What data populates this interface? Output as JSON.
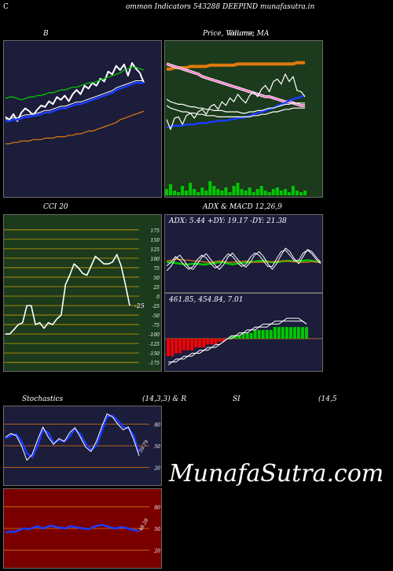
{
  "header": {
    "left_letter": "C",
    "title": "ommon  Indicators 543288  DEEPIND munafasutra.in"
  },
  "watermark": "MunafaSutra.com",
  "colors": {
    "navy": "#1c1c3b",
    "forest": "#1c3a1c",
    "maroon": "#7a0000",
    "white": "#ffffff",
    "blue": "#1a3cff",
    "green": "#00c800",
    "orange": "#e07a10",
    "pink": "#ff7ad0",
    "red": "#ff0000",
    "gold": "#c8a000"
  },
  "panels": {
    "bb": {
      "title": "B"
    },
    "price": {
      "title_a": "Price,  Volume,  MA",
      "title_b": "Volume"
    },
    "cci": {
      "title": "CCI 20",
      "last_label": "-25"
    },
    "adx": {
      "title": "ADX  & MACD 12,26,9",
      "values_label": "ADX: 5.44  +DY: 19.17 -DY: 21.38"
    },
    "macd": {
      "values_label": "461.85,  454.84,  7.01"
    },
    "stoch": {
      "title_left": "Stochastics",
      "title_mid": "(14,3,3) & R",
      "title_right": "SI",
      "title_far": "(14,5",
      "last_label": "39.79"
    },
    "rsi": {
      "last_label": "48.28"
    }
  },
  "chart_data": [
    {
      "type": "line",
      "name_hint": "bollinger",
      "ylim": [
        0,
        100
      ],
      "series": [
        {
          "color": "white",
          "values": [
            52,
            50,
            54,
            49,
            55,
            58,
            56,
            53,
            57,
            60,
            59,
            63,
            61,
            66,
            64,
            67,
            63,
            68,
            71,
            68,
            74,
            72,
            76,
            74,
            79,
            77,
            84,
            82,
            88,
            85,
            89,
            81,
            90,
            86,
            83,
            76
          ]
        },
        {
          "color": "blue",
          "values": [
            49,
            49,
            50,
            50,
            51,
            52,
            52,
            53,
            53,
            54,
            55,
            55,
            56,
            57,
            58,
            58,
            59,
            60,
            61,
            61,
            62,
            63,
            64,
            65,
            66,
            67,
            68,
            69,
            71,
            72,
            73,
            74,
            75,
            76,
            76,
            76
          ]
        },
        {
          "color": "green",
          "values": [
            65,
            66,
            66,
            65,
            64,
            65,
            66,
            66,
            67,
            67,
            68,
            69,
            69,
            70,
            71,
            71,
            72,
            73,
            73,
            74,
            75,
            76,
            76,
            77,
            78,
            79,
            80,
            81,
            82,
            83,
            85,
            86,
            87,
            87,
            86,
            85
          ]
        },
        {
          "color": "orange",
          "values": [
            33,
            33,
            34,
            34,
            35,
            35,
            35,
            36,
            36,
            36,
            37,
            37,
            37,
            38,
            38,
            38,
            39,
            39,
            40,
            40,
            41,
            42,
            42,
            43,
            44,
            45,
            46,
            47,
            48,
            50,
            51,
            52,
            53,
            54,
            55,
            56
          ]
        }
      ]
    },
    {
      "type": "line",
      "name_hint": "price_ma_volume",
      "ylim": [
        0,
        100
      ],
      "series": [
        {
          "color": "orange",
          "values": [
            84,
            84,
            85,
            85,
            85,
            85,
            86,
            86,
            86,
            86,
            86,
            87,
            87,
            87,
            87,
            87,
            87,
            87,
            88,
            88,
            88,
            88,
            88,
            88,
            88,
            88,
            88,
            88,
            88,
            88,
            88,
            88,
            88,
            89,
            89,
            89
          ]
        },
        {
          "color": "pink",
          "values": [
            88,
            87,
            86,
            85,
            84,
            83,
            82,
            81,
            80,
            78,
            77,
            76,
            75,
            74,
            73,
            72,
            71,
            70,
            69,
            68,
            67,
            66,
            65,
            64,
            63,
            62,
            62,
            61,
            60,
            59,
            58,
            58,
            57,
            56,
            55,
            55
          ]
        },
        {
          "color": "blue",
          "values": [
            38,
            38,
            39,
            39,
            39,
            40,
            40,
            40,
            41,
            41,
            41,
            42,
            42,
            43,
            43,
            43,
            44,
            44,
            45,
            45,
            46,
            47,
            48,
            49,
            50,
            51,
            52,
            53,
            55,
            56,
            57,
            59,
            60,
            61,
            62,
            63
          ]
        },
        {
          "color": "white",
          "values": [
            44,
            36,
            45,
            46,
            40,
            47,
            49,
            45,
            50,
            52,
            48,
            54,
            56,
            52,
            58,
            55,
            61,
            58,
            64,
            60,
            57,
            63,
            66,
            62,
            68,
            71,
            66,
            74,
            76,
            72,
            80,
            74,
            78,
            67,
            66,
            62
          ]
        },
        {
          "color": "white",
          "values": [
            60,
            58,
            57,
            56,
            56,
            55,
            54,
            54,
            53,
            53,
            52,
            52,
            51,
            51,
            51,
            50,
            50,
            50,
            50,
            49,
            49,
            50,
            50,
            51,
            51,
            52,
            53,
            53,
            54,
            55,
            56,
            56,
            57,
            57,
            57,
            57
          ]
        },
        {
          "color": "white",
          "values": [
            55,
            53,
            52,
            51,
            50,
            50,
            49,
            49,
            48,
            48,
            47,
            47,
            47,
            46,
            46,
            46,
            46,
            46,
            46,
            46,
            46,
            46,
            47,
            47,
            48,
            48,
            49,
            50,
            50,
            51,
            52,
            52,
            53,
            53,
            53,
            53
          ]
        }
      ],
      "volume": [
        4,
        7,
        3,
        2,
        6,
        3,
        8,
        4,
        2,
        5,
        3,
        9,
        6,
        4,
        3,
        5,
        2,
        6,
        8,
        4,
        3,
        5,
        2,
        4,
        6,
        3,
        2,
        4,
        5,
        3,
        4,
        2,
        6,
        3,
        2,
        3
      ]
    },
    {
      "type": "line",
      "name_hint": "cci",
      "yticks": [
        175,
        150,
        125,
        100,
        75,
        50,
        25,
        0,
        -25,
        -50,
        -75,
        -100,
        -125,
        -150,
        -175
      ],
      "ylim": [
        -185,
        185
      ],
      "series": [
        {
          "color": "white",
          "values": [
            -100,
            -100,
            -88,
            -75,
            -70,
            -25,
            -25,
            -75,
            -70,
            -85,
            -70,
            -75,
            -60,
            -50,
            30,
            55,
            85,
            75,
            60,
            55,
            80,
            105,
            95,
            85,
            85,
            90,
            110,
            80,
            30,
            -25
          ]
        }
      ]
    },
    {
      "type": "line",
      "name_hint": "adx",
      "ylim": [
        0,
        100
      ],
      "series": [
        {
          "color": "green",
          "values": [
            40,
            40,
            39,
            38,
            37,
            37,
            38,
            38,
            37,
            37,
            38,
            39,
            40,
            40,
            38,
            37,
            38,
            39,
            40,
            40,
            41,
            42,
            42,
            41,
            40,
            40,
            41,
            42,
            42,
            41,
            42,
            42,
            43,
            42,
            41,
            40
          ]
        },
        {
          "color": "orange",
          "values": [
            42,
            43,
            44,
            44,
            43,
            43,
            42,
            42,
            41,
            40,
            40,
            41,
            42,
            41,
            40,
            40,
            41,
            41,
            42,
            41,
            40,
            40,
            40,
            41,
            41,
            41,
            42,
            42,
            41,
            41,
            40,
            40,
            40,
            41,
            40,
            40
          ]
        },
        {
          "color": "white",
          "values": [
            28,
            34,
            45,
            50,
            42,
            33,
            30,
            38,
            47,
            52,
            44,
            36,
            30,
            37,
            48,
            53,
            45,
            38,
            33,
            40,
            50,
            55,
            48,
            38,
            30,
            38,
            50,
            60,
            55,
            45,
            38,
            48,
            58,
            55,
            47,
            40
          ]
        },
        {
          "color": "white",
          "values": [
            35,
            40,
            48,
            43,
            36,
            30,
            34,
            44,
            50,
            46,
            38,
            32,
            35,
            45,
            52,
            48,
            40,
            34,
            37,
            47,
            53,
            50,
            42,
            34,
            34,
            45,
            55,
            57,
            50,
            42,
            43,
            53,
            57,
            52,
            44,
            38
          ]
        }
      ]
    },
    {
      "type": "bar",
      "name_hint": "macd",
      "ylim": [
        -10,
        10
      ],
      "histogram": [
        -6,
        -6,
        -5,
        -5,
        -4,
        -4,
        -4,
        -3,
        -3,
        -3,
        -2,
        -2,
        -2,
        -1,
        -1,
        0,
        1,
        1,
        1,
        2,
        2,
        2,
        3,
        3,
        3,
        3,
        3,
        4,
        4,
        4,
        4,
        4,
        4,
        4,
        4,
        4
      ],
      "series": [
        {
          "color": "white",
          "values": [
            -9,
            -8,
            -8,
            -7,
            -7,
            -6,
            -6,
            -5,
            -5,
            -4,
            -4,
            -3,
            -3,
            -2,
            -1,
            0,
            1,
            1,
            2,
            2,
            3,
            3,
            4,
            4,
            5,
            5,
            5,
            6,
            6,
            6,
            7,
            7,
            7,
            7,
            6,
            5
          ]
        },
        {
          "color": "white",
          "values": [
            -8,
            -8,
            -7,
            -7,
            -6,
            -6,
            -5,
            -5,
            -4,
            -4,
            -3,
            -3,
            -2,
            -2,
            -1,
            0,
            0,
            1,
            1,
            2,
            2,
            3,
            3,
            4,
            4,
            4,
            5,
            5,
            5,
            6,
            6,
            6,
            6,
            6,
            6,
            5
          ]
        }
      ]
    },
    {
      "type": "line",
      "name_hint": "stochastics",
      "yticks": [
        80,
        50,
        20
      ],
      "ylim": [
        0,
        100
      ],
      "series": [
        {
          "color": "blue",
          "values": [
            60,
            64,
            66,
            56,
            40,
            34,
            50,
            72,
            68,
            54,
            58,
            56,
            63,
            73,
            66,
            53,
            44,
            50,
            70,
            90,
            92,
            85,
            76,
            74,
            64,
            40
          ]
        },
        {
          "color": "white",
          "values": [
            62,
            67,
            64,
            50,
            30,
            38,
            58,
            76,
            62,
            52,
            60,
            56,
            68,
            75,
            62,
            48,
            42,
            56,
            76,
            94,
            90,
            80,
            72,
            76,
            58,
            36
          ]
        }
      ]
    },
    {
      "type": "line",
      "name_hint": "rsi",
      "yticks": [
        80,
        50,
        20
      ],
      "ylim": [
        0,
        100
      ],
      "series": [
        {
          "color": "blue",
          "values": [
            44,
            46,
            45,
            48,
            50,
            49,
            51,
            53,
            50,
            52,
            54,
            52,
            51,
            50,
            53,
            52,
            51,
            50,
            49,
            52,
            54,
            55,
            53,
            51,
            50,
            52,
            51,
            49,
            48,
            46
          ]
        }
      ]
    }
  ]
}
